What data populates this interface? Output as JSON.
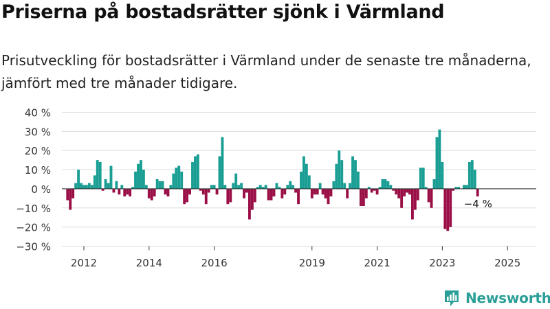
{
  "header": {
    "title": "Priserna på bostadsrätter sjönk i Värmland",
    "subtitle": "Prisutveckling för bostadsrätter i Värmland under de senaste tre månaderna, jämfört med tre månader tidigare."
  },
  "brand": {
    "name": "Newsworthy",
    "logo_icon": "bar-chart-icon",
    "color": "#2a9f97"
  },
  "chart_data": {
    "type": "bar",
    "title": "",
    "xlabel": "",
    "ylabel": "",
    "ylim": [
      -30,
      40
    ],
    "y_ticks": [
      -30,
      -20,
      -10,
      0,
      10,
      20,
      30,
      40
    ],
    "y_tick_labels": [
      "−30 %",
      "−20 %",
      "−10 %",
      "0 %",
      "10 %",
      "20 %",
      "30 %",
      "40 %"
    ],
    "x_ticks": [
      2012,
      2014,
      2016,
      2019,
      2021,
      2023,
      2025
    ],
    "x_tick_labels": [
      "2012",
      "2014",
      "2016",
      "2019",
      "2021",
      "2023",
      "2025"
    ],
    "x_start": 2011.5,
    "x_end": 2025.5,
    "x_step": 0.08333,
    "colors": {
      "positive": "#1a9e94",
      "negative": "#9b0f47"
    },
    "grid": true,
    "annotation": {
      "text": "−4 %",
      "value": -4
    },
    "values": [
      -6,
      -11,
      -5,
      3,
      10,
      3,
      2,
      2,
      3,
      2,
      7,
      15,
      14,
      -1,
      5,
      3,
      12,
      -2,
      4,
      -3,
      2,
      -4,
      -3,
      -4,
      1,
      9,
      13,
      15,
      10,
      2,
      -5,
      -6,
      -4,
      5,
      4,
      4,
      -3,
      -4,
      2,
      8,
      11,
      12,
      9,
      -8,
      -7,
      -3,
      14,
      17,
      18,
      -1,
      -3,
      -8,
      -2,
      2,
      2,
      -3,
      17,
      27,
      2,
      -8,
      -7,
      3,
      8,
      2,
      3,
      -5,
      -2,
      -16,
      -11,
      -7,
      1,
      2,
      1,
      2,
      -6,
      -6,
      -4,
      3,
      1,
      -5,
      -3,
      2,
      4,
      2,
      -2,
      -8,
      9,
      17,
      13,
      7,
      -5,
      -3,
      -3,
      3,
      -3,
      -5,
      -8,
      -4,
      4,
      13,
      20,
      15,
      3,
      -5,
      3,
      17,
      15,
      9,
      -9,
      -9,
      -5,
      1,
      -2,
      -1,
      -3,
      1,
      5,
      5,
      4,
      2,
      -1,
      -3,
      -5,
      -10,
      -4,
      -2,
      -3,
      -16,
      -11,
      -6,
      11,
      11,
      1,
      -7,
      -10,
      5,
      27,
      31,
      14,
      -21,
      -22,
      -20,
      -1,
      1,
      1,
      0,
      2,
      2,
      14,
      15,
      10,
      -4
    ]
  }
}
